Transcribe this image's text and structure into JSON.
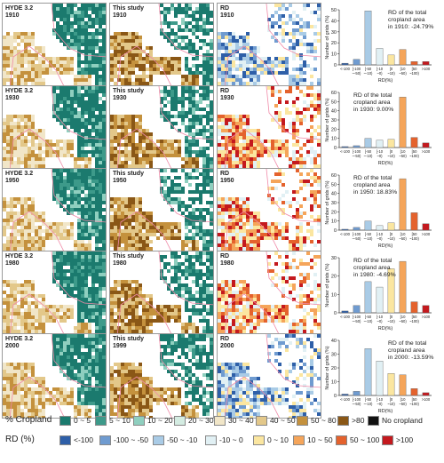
{
  "panels": [
    {
      "hyde_label": "HYDE 3.2\n1910",
      "study_label": "This study\n1910",
      "rd_label": "RD\n1910"
    },
    {
      "hyde_label": "HYDE 3.2\n1930",
      "study_label": "This study\n1930",
      "rd_label": "RD\n1930"
    },
    {
      "hyde_label": "HYDE 3.2\n1950",
      "study_label": "This study\n1950",
      "rd_label": "RD\n1950"
    },
    {
      "hyde_label": "HYDE 3.2\n1980",
      "study_label": "This study\n1980",
      "rd_label": "RD\n1980"
    },
    {
      "hyde_label": "HYDE 3.2\n2000",
      "study_label": "This study\n1999",
      "rd_label": "RD\n2000"
    }
  ],
  "chart_data": [
    {
      "type": "bar",
      "ylabel": "Number of grids (%)",
      "xlabel": "RD(%)",
      "ylim": [
        0,
        50
      ],
      "categories": [
        "<-100",
        "[-100\n~-50)",
        "[-50\n~-10)",
        "[-10\n~0)",
        "[0\n~10)",
        "[10\n~50)",
        "[50\n~100)",
        ">100"
      ],
      "values": [
        1.5,
        5,
        49,
        15,
        9,
        14,
        3,
        3
      ],
      "annotation": "RD of the total\ncropland area\nin 1910: -24.79%"
    },
    {
      "type": "bar",
      "ylabel": "Number of grids (%)",
      "xlabel": "RD(%)",
      "ylim": [
        0,
        60
      ],
      "categories": [
        "<-100",
        "[-100\n~-50)",
        "[-50\n~-10)",
        "[-10\n~0)",
        "[0\n~10)",
        "[10\n~50)",
        "[50\n~100)",
        ">100"
      ],
      "values": [
        1,
        2,
        10,
        8,
        9,
        55,
        11,
        5
      ],
      "annotation": "RD of the total\ncropland area\nin 1930: 9.00%"
    },
    {
      "type": "bar",
      "ylabel": "Number of grids (%)",
      "xlabel": "RD(%)",
      "ylim": [
        0,
        60
      ],
      "categories": [
        "<-100",
        "[-100\n~-50)",
        "[-50\n~-10)",
        "[-10\n~0)",
        "[0\n~10)",
        "[10\n~50)",
        "[50\n~100)",
        ">100"
      ],
      "values": [
        1,
        3,
        10,
        5,
        8,
        56,
        19,
        7
      ],
      "annotation": "RD of the total\ncropland area\nin 1950: 18.83%"
    },
    {
      "type": "bar",
      "ylabel": "Number of grids (%)",
      "xlabel": "RD(%)",
      "ylim": [
        0,
        30
      ],
      "categories": [
        "<-100",
        "[-100\n~-50)",
        "[-50\n~-10)",
        "[-10\n~0)",
        "[0\n~10)",
        "[10\n~50)",
        "[50\n~100)",
        ">100"
      ],
      "values": [
        1,
        4,
        17,
        14,
        24,
        28,
        6,
        4
      ],
      "annotation": "RD of the total\ncropland area\nin 1980:  -4.69%"
    },
    {
      "type": "bar",
      "ylabel": "Number of grids (%)",
      "xlabel": "RD(%)",
      "ylim": [
        0,
        40
      ],
      "categories": [
        "<-100",
        "[-100\n~-50)",
        "[-50\n~-10)",
        "[-10\n~0)",
        "[0\n~10)",
        "[10\n~50)",
        "[50\n~100)",
        ">100"
      ],
      "values": [
        1,
        3,
        34,
        25,
        16,
        15,
        5,
        2
      ],
      "annotation": "RD of the total\ncropland area\nin 2000:  -13.59%"
    }
  ],
  "legends": {
    "cropland": {
      "title": "% Cropland",
      "items": [
        {
          "label": "0 ~ 5",
          "color": "#1b7a6e"
        },
        {
          "label": "5 ~ 10",
          "color": "#3d9a8a"
        },
        {
          "label": "10 ~ 20",
          "color": "#8fcfbf"
        },
        {
          "label": "20 ~ 30",
          "color": "#d4ece2"
        },
        {
          "label": "30 ~ 40",
          "color": "#f1e6c8"
        },
        {
          "label": "40 ~ 50",
          "color": "#e3c88a"
        },
        {
          "label": "50 ~ 80",
          "color": "#c4913d"
        },
        {
          "label": ">80",
          "color": "#8a5716"
        },
        {
          "label": "No cropland",
          "color": "#111111"
        }
      ]
    },
    "rd": {
      "title": "RD (%)",
      "items": [
        {
          "label": "<-100",
          "color": "#2e5fa8"
        },
        {
          "label": "-100 ~ -50",
          "color": "#6f9bd0"
        },
        {
          "label": "-50 ~ -10",
          "color": "#a9cbe6"
        },
        {
          "label": "-10 ~ 0",
          "color": "#e1f0f4"
        },
        {
          "label": "0 ~ 10",
          "color": "#fbe6a0"
        },
        {
          "label": "10 ~ 50",
          "color": "#f5a55a"
        },
        {
          "label": "50 ~ 100",
          "color": "#e4622d"
        },
        {
          "label": ">100",
          "color": "#c4191e"
        }
      ]
    }
  }
}
